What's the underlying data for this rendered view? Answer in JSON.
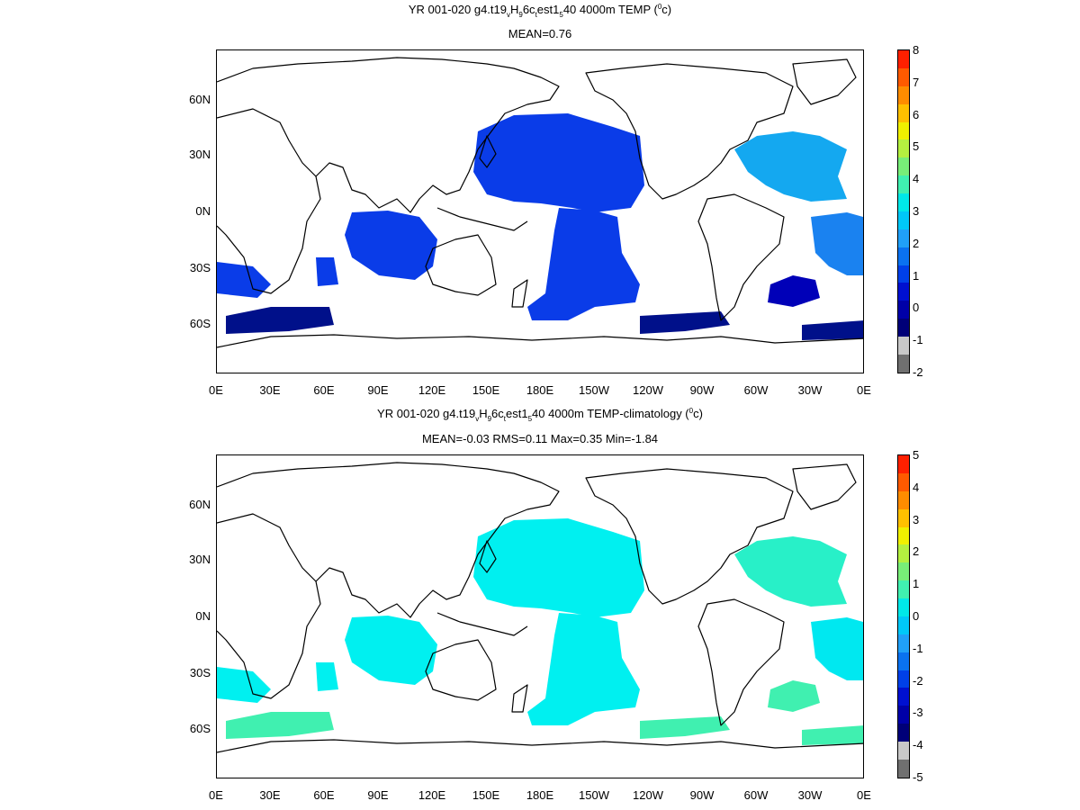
{
  "panels": [
    {
      "title_pre": "YR 001-020 g4.t19",
      "title_sub1": "v",
      "title_mid1": "H",
      "title_sub2": "9",
      "title_mid2": "6c",
      "title_sub3": "t",
      "title_mid3": "est1",
      "title_sub4": "5",
      "title_post": "40 4000m TEMP (",
      "title_sup": "0",
      "title_end": "c)",
      "stats": "MEAN=0.76",
      "colorbar_labels": [
        "8",
        "7",
        "6",
        "5",
        "4",
        "3",
        "2",
        "1",
        "0",
        "-1",
        "-2"
      ],
      "colorbar_colors": [
        "#ff2000",
        "#ff5a00",
        "#ff8c00",
        "#ffc000",
        "#f0f000",
        "#b4f040",
        "#78ee78",
        "#40f0b0",
        "#00e8e8",
        "#00c8f8",
        "#20a0f8",
        "#0a72f0",
        "#0040e8",
        "#0010d0",
        "#0000a8",
        "#000078",
        "#c8c8c8",
        "#707070"
      ],
      "ocean_fills": [
        {
          "region": "north-pacific",
          "color": "#0a3ce8"
        },
        {
          "region": "south-pacific",
          "color": "#0a3ce8"
        },
        {
          "region": "north-atlantic",
          "color": "#14a8f0"
        },
        {
          "region": "south-atlantic-west",
          "color": "#0000b8"
        },
        {
          "region": "southern-ocean",
          "color": "#00108a"
        },
        {
          "region": "indian-ocean",
          "color": "#0a3ce8"
        },
        {
          "region": "equatorial-atlantic",
          "color": "#1a82f0"
        }
      ]
    },
    {
      "title_pre": "YR 001-020 g4.t19",
      "title_sub1": "v",
      "title_mid1": "H",
      "title_sub2": "9",
      "title_mid2": "6c",
      "title_sub3": "t",
      "title_mid3": "est1",
      "title_sub4": "5",
      "title_post": "40 4000m TEMP-climatology (",
      "title_sup": "0",
      "title_end": "c)",
      "stats": "MEAN=-0.03   RMS=0.11   Max=0.35   Min=-1.84",
      "colorbar_labels": [
        "5",
        "4",
        "3",
        "2",
        "1",
        "0",
        "-1",
        "-2",
        "-3",
        "-4",
        "-5"
      ],
      "colorbar_colors": [
        "#ff2000",
        "#ff5a00",
        "#ff8c00",
        "#ffc000",
        "#f0f000",
        "#b4f040",
        "#78ee78",
        "#40f0b0",
        "#00e8e8",
        "#00c8f8",
        "#20a0f8",
        "#0a72f0",
        "#0040e8",
        "#0010d0",
        "#0000a8",
        "#000078",
        "#c8c8c8",
        "#707070"
      ],
      "ocean_fills": [
        {
          "region": "north-pacific",
          "color": "#00f0f0"
        },
        {
          "region": "south-pacific",
          "color": "#00f0f0"
        },
        {
          "region": "north-atlantic",
          "color": "#28f0c8"
        },
        {
          "region": "south-atlantic-west",
          "color": "#40f0b0"
        },
        {
          "region": "southern-ocean",
          "color": "#40f0b0"
        },
        {
          "region": "indian-ocean",
          "color": "#00f0f0"
        },
        {
          "region": "equatorial-atlantic",
          "color": "#00e8f0"
        }
      ]
    }
  ],
  "lat_labels": [
    "60N",
    "30N",
    "0N",
    "30S",
    "60S"
  ],
  "lon_labels": [
    "0E",
    "30E",
    "60E",
    "90E",
    "120E",
    "150E",
    "180E",
    "150W",
    "120W",
    "90W",
    "60W",
    "30W",
    "0E"
  ]
}
